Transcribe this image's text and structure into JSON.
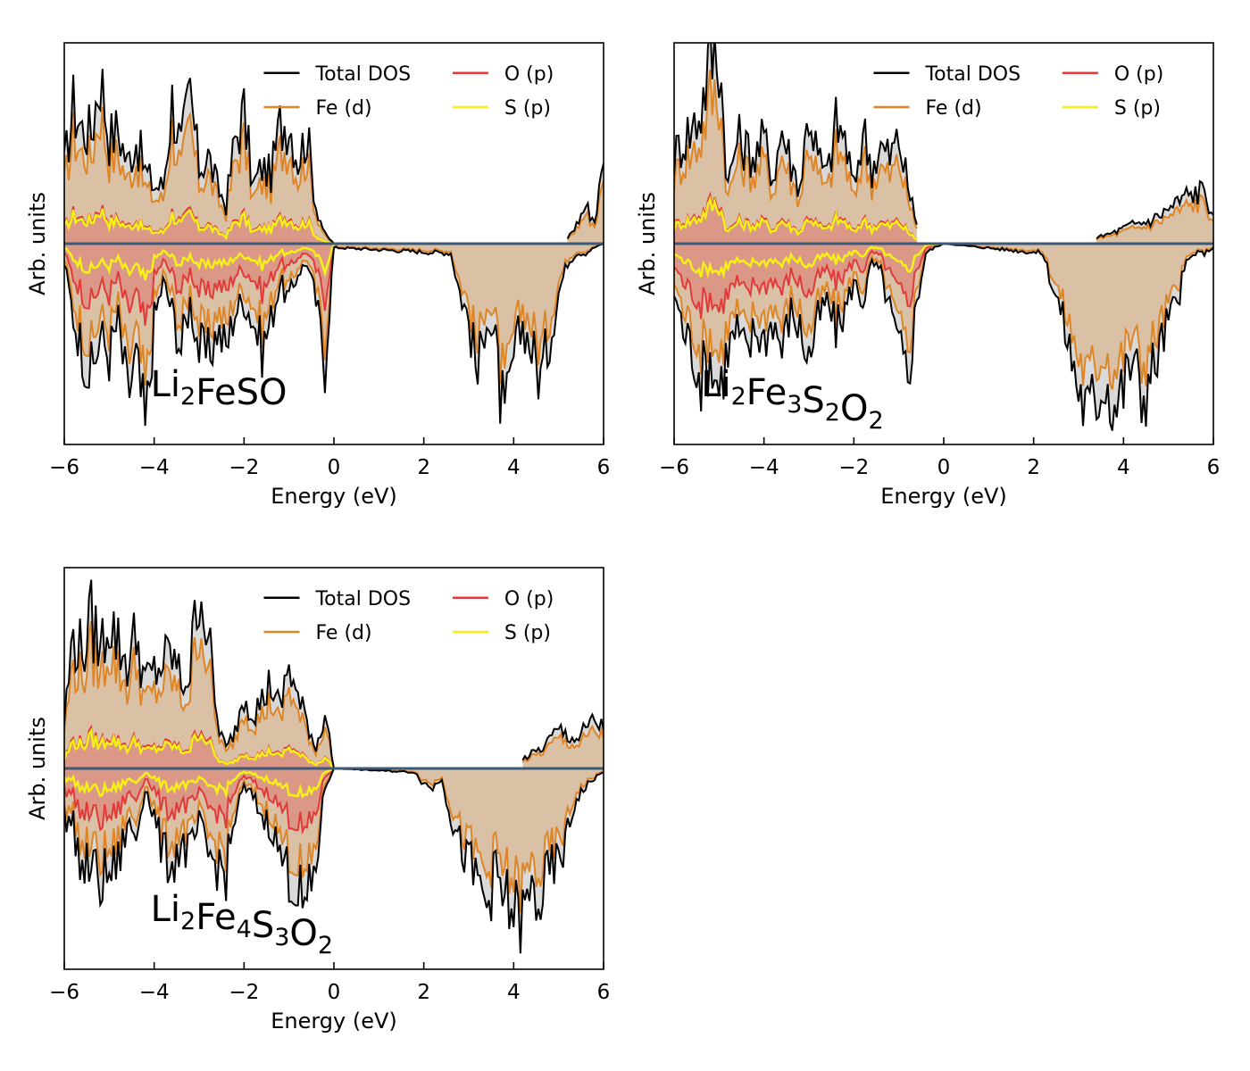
{
  "chart_data": [
    {
      "type": "area",
      "panel": "top-left",
      "compound": [
        [
          "Li",
          "2"
        ],
        [
          "FeSO",
          ""
        ]
      ],
      "xlabel": "Energy (eV)",
      "ylabel": "Arb. units",
      "xlim": [
        -6,
        6
      ],
      "ylim": [
        -1.05,
        1.05
      ],
      "xticks": [
        -6,
        -4,
        -2,
        0,
        2,
        4,
        6
      ],
      "xtick_labels": [
        "−6",
        "−4",
        "−2",
        "0",
        "2",
        "4",
        "6"
      ],
      "legend": [
        {
          "name": "Total DOS",
          "color": "#000000"
        },
        {
          "name": "O (p)",
          "color": "#e23a3a"
        },
        {
          "name": "Fe (d)",
          "color": "#de8525"
        },
        {
          "name": "S (p)",
          "color": "#f5f015"
        }
      ],
      "legend_position": "top-right",
      "series": [
        {
          "name": "Total DOS",
          "spin": "up",
          "x": [
            -6,
            -5.8,
            -5.6,
            -5.4,
            -5.2,
            -5.0,
            -4.8,
            -4.6,
            -4.4,
            -4.2,
            -4.0,
            -3.8,
            -3.6,
            -3.4,
            -3.2,
            -3.0,
            -2.8,
            -2.6,
            -2.4,
            -2.2,
            -2.0,
            -1.8,
            -1.6,
            -1.4,
            -1.2,
            -1.0,
            -0.8,
            -0.6,
            -0.4,
            -0.2,
            0.0
          ],
          "y": [
            0.4,
            0.72,
            0.6,
            0.58,
            0.9,
            0.55,
            0.6,
            0.42,
            0.55,
            0.38,
            0.3,
            0.3,
            0.75,
            0.5,
            0.78,
            0.4,
            0.46,
            0.3,
            0.2,
            0.55,
            0.68,
            0.3,
            0.4,
            0.36,
            0.62,
            0.65,
            0.44,
            0.58,
            0.2,
            0.05,
            0.0
          ]
        },
        {
          "name": "Total DOS",
          "spin": "down",
          "x": [
            -6,
            -5.8,
            -5.6,
            -5.4,
            -5.2,
            -5.0,
            -4.8,
            -4.6,
            -4.4,
            -4.2,
            -4.0,
            -3.8,
            -3.6,
            -3.4,
            -3.2,
            -3.0,
            -2.8,
            -2.6,
            -2.4,
            -2.2,
            -2.0,
            -1.8,
            -1.6,
            -1.4,
            -1.2,
            -1.0,
            -0.8,
            -0.6,
            -0.4,
            -0.2,
            0.0,
            2.6,
            2.8,
            3.0,
            3.2,
            3.4,
            3.6,
            3.8,
            4.0,
            4.2,
            4.4,
            4.6,
            4.8,
            5.0,
            5.2,
            5.4,
            5.6,
            5.8,
            6.0
          ],
          "y": [
            -0.1,
            -0.38,
            -0.55,
            -0.7,
            -0.48,
            -0.58,
            -0.4,
            -0.8,
            -0.6,
            -1.0,
            -0.4,
            -0.2,
            -0.35,
            -0.55,
            -0.3,
            -0.55,
            -0.6,
            -0.45,
            -0.55,
            -0.35,
            -0.3,
            -0.4,
            -0.55,
            -0.4,
            -0.2,
            -0.3,
            -0.15,
            -0.1,
            -0.3,
            -0.62,
            -0.02,
            -0.05,
            -0.25,
            -0.4,
            -0.7,
            -0.35,
            -0.55,
            -1.0,
            -0.6,
            -0.42,
            -0.55,
            -0.7,
            -0.5,
            -0.25,
            -0.1,
            -0.05,
            -0.05,
            -0.02,
            0.0
          ]
        },
        {
          "name": "Total DOS",
          "spin": "up",
          "x": [
            5.2,
            5.4,
            5.6,
            5.8,
            6.0
          ],
          "y": [
            0.03,
            0.1,
            0.2,
            0.12,
            0.42
          ]
        }
      ]
    },
    {
      "type": "area",
      "panel": "top-right",
      "compound": [
        [
          "Li",
          "2"
        ],
        [
          "Fe",
          "3"
        ],
        [
          "S",
          "2"
        ],
        [
          "O",
          "2"
        ]
      ],
      "xlabel": "Energy (eV)",
      "ylabel": "Arb. units",
      "xlim": [
        -6,
        6
      ],
      "ylim": [
        -1.05,
        1.05
      ],
      "xticks": [
        -6,
        -4,
        -2,
        0,
        2,
        4,
        6
      ],
      "xtick_labels": [
        "−6",
        "−4",
        "−2",
        "0",
        "2",
        "4",
        "6"
      ],
      "legend": [
        {
          "name": "Total DOS",
          "color": "#000000"
        },
        {
          "name": "O (p)",
          "color": "#e23a3a"
        },
        {
          "name": "Fe (d)",
          "color": "#de8525"
        },
        {
          "name": "S (p)",
          "color": "#f5f015"
        }
      ],
      "legend_position": "top-right",
      "series": [
        {
          "name": "Total DOS",
          "spin": "up",
          "x": [
            -6,
            -5.8,
            -5.6,
            -5.4,
            -5.2,
            -5.0,
            -4.8,
            -4.6,
            -4.4,
            -4.2,
            -4.0,
            -3.8,
            -3.6,
            -3.4,
            -3.2,
            -3.0,
            -2.8,
            -2.6,
            -2.4,
            -2.2,
            -2.0,
            -1.8,
            -1.6,
            -1.4,
            -1.2,
            -1.0,
            -0.8,
            -0.6
          ],
          "y": [
            0.45,
            0.55,
            0.6,
            0.7,
            0.98,
            1.0,
            0.3,
            0.55,
            0.5,
            0.45,
            0.55,
            0.35,
            0.6,
            0.42,
            0.3,
            0.7,
            0.45,
            0.35,
            0.62,
            0.55,
            0.28,
            0.6,
            0.4,
            0.5,
            0.45,
            0.55,
            0.3,
            0.1
          ]
        },
        {
          "name": "Total DOS",
          "spin": "down",
          "x": [
            -6,
            -5.8,
            -5.6,
            -5.4,
            -5.2,
            -5.0,
            -4.8,
            -4.6,
            -4.4,
            -4.2,
            -4.0,
            -3.8,
            -3.6,
            -3.4,
            -3.2,
            -3.0,
            -2.8,
            -2.6,
            -2.4,
            -2.2,
            -2.0,
            -1.8,
            -1.6,
            -1.4,
            -1.2,
            -1.0,
            -0.8,
            -0.6,
            -0.4,
            -0.2,
            0.0,
            2.2,
            2.4,
            2.6,
            2.8,
            3.0,
            3.2,
            3.4,
            3.6,
            3.8,
            4.0,
            4.2,
            4.4,
            4.6,
            4.8,
            5.0,
            5.2,
            5.4,
            5.6,
            5.8,
            6.0
          ],
          "y": [
            -0.25,
            -0.45,
            -0.55,
            -0.7,
            -0.6,
            -0.75,
            -0.55,
            -0.45,
            -0.6,
            -0.45,
            -0.5,
            -0.4,
            -0.55,
            -0.35,
            -0.45,
            -0.6,
            -0.4,
            -0.3,
            -0.45,
            -0.35,
            -0.2,
            -0.3,
            -0.1,
            -0.15,
            -0.35,
            -0.55,
            -0.7,
            -0.3,
            -0.05,
            -0.02,
            0.0,
            -0.05,
            -0.2,
            -0.35,
            -0.55,
            -0.75,
            -0.9,
            -0.8,
            -0.7,
            -0.85,
            -0.75,
            -0.6,
            -0.8,
            -0.7,
            -0.55,
            -0.4,
            -0.3,
            -0.1,
            -0.05,
            -0.05,
            -0.02
          ]
        },
        {
          "name": "Total DOS",
          "spin": "up",
          "x": [
            3.4,
            3.8,
            4.2,
            4.6,
            5.0,
            5.4,
            5.8,
            6.0
          ],
          "y": [
            0.03,
            0.06,
            0.1,
            0.12,
            0.18,
            0.25,
            0.28,
            0.15
          ]
        }
      ]
    },
    {
      "type": "area",
      "panel": "bottom-left",
      "compound": [
        [
          "Li",
          "2"
        ],
        [
          "Fe",
          "4"
        ],
        [
          "S",
          "3"
        ],
        [
          "O",
          "2"
        ]
      ],
      "xlabel": "Energy (eV)",
      "ylabel": "Arb. units",
      "xlim": [
        -6,
        6
      ],
      "ylim": [
        -1.05,
        1.05
      ],
      "xticks": [
        -6,
        -4,
        -2,
        0,
        2,
        4,
        6
      ],
      "xtick_labels": [
        "−6",
        "−4",
        "−2",
        "0",
        "2",
        "4",
        "6"
      ],
      "legend": [
        {
          "name": "Total DOS",
          "color": "#000000"
        },
        {
          "name": "O (p)",
          "color": "#e23a3a"
        },
        {
          "name": "Fe (d)",
          "color": "#de8525"
        },
        {
          "name": "S (p)",
          "color": "#f5f015"
        }
      ],
      "legend_position": "top-right",
      "series": [
        {
          "name": "Total DOS",
          "spin": "up",
          "x": [
            -6,
            -5.8,
            -5.6,
            -5.4,
            -5.2,
            -5.0,
            -4.8,
            -4.6,
            -4.4,
            -4.2,
            -4.0,
            -3.8,
            -3.6,
            -3.4,
            -3.2,
            -3.0,
            -2.8,
            -2.6,
            -2.4,
            -2.2,
            -2.0,
            -1.8,
            -1.6,
            -1.4,
            -1.2,
            -1.0,
            -0.8,
            -0.6,
            -0.4,
            -0.2,
            0.0
          ],
          "y": [
            0.25,
            0.7,
            0.6,
            0.78,
            0.62,
            0.8,
            0.65,
            0.55,
            0.7,
            0.45,
            0.5,
            0.55,
            0.6,
            0.45,
            0.5,
            1.0,
            0.7,
            0.25,
            0.1,
            0.2,
            0.4,
            0.3,
            0.35,
            0.45,
            0.3,
            0.55,
            0.35,
            0.25,
            0.1,
            0.3,
            0.0
          ]
        },
        {
          "name": "Total DOS",
          "spin": "down",
          "x": [
            -6,
            -5.8,
            -5.6,
            -5.4,
            -5.2,
            -5.0,
            -4.8,
            -4.6,
            -4.4,
            -4.2,
            -4.0,
            -3.8,
            -3.6,
            -3.4,
            -3.2,
            -3.0,
            -2.8,
            -2.6,
            -2.4,
            -2.2,
            -2.0,
            -1.8,
            -1.6,
            -1.4,
            -1.2,
            -1.0,
            -0.8,
            -0.6,
            -0.4,
            -0.2,
            0.0,
            1.8,
            2.0,
            2.2,
            2.4,
            2.6,
            2.8,
            3.0,
            3.2,
            3.4,
            3.6,
            3.8,
            4.0,
            4.2,
            4.4,
            4.6,
            4.8,
            5.0,
            5.2,
            5.4,
            5.6,
            5.8,
            6.0
          ],
          "y": [
            -0.25,
            -0.3,
            -0.55,
            -0.5,
            -0.6,
            -0.55,
            -0.5,
            -0.3,
            -0.35,
            -0.1,
            -0.25,
            -0.45,
            -0.5,
            -0.4,
            -0.45,
            -0.3,
            -0.45,
            -0.5,
            -0.55,
            -0.25,
            -0.1,
            -0.15,
            -0.25,
            -0.3,
            -0.45,
            -0.55,
            -0.65,
            -0.75,
            -0.5,
            -0.1,
            0.0,
            -0.02,
            -0.08,
            -0.1,
            -0.05,
            -0.25,
            -0.4,
            -0.5,
            -0.6,
            -0.7,
            -0.55,
            -0.7,
            -0.75,
            -0.8,
            -0.65,
            -0.7,
            -0.55,
            -0.5,
            -0.35,
            -0.15,
            -0.1,
            -0.05,
            -0.02
          ]
        },
        {
          "name": "Total DOS",
          "spin": "up",
          "x": [
            4.2,
            4.6,
            5.0,
            5.4,
            5.8,
            6.0
          ],
          "y": [
            0.05,
            0.1,
            0.2,
            0.15,
            0.25,
            0.2
          ]
        }
      ]
    }
  ]
}
